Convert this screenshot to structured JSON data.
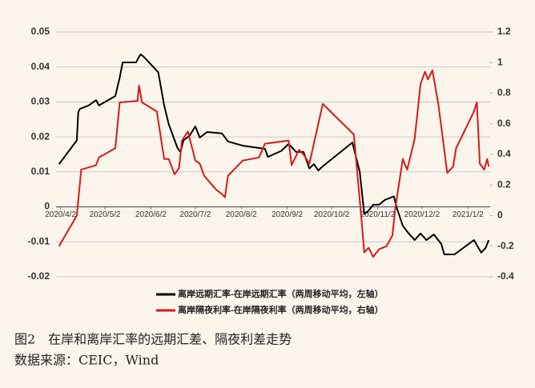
{
  "chart_data": {
    "type": "line",
    "xlim": [
      "2020/3/30",
      "2021/1/17"
    ],
    "xticks": [
      "2020/4/2",
      "2020/5/2",
      "2020/6/2",
      "2020/7/2",
      "2020/8/2",
      "2020/9/2",
      "2020/10/2",
      "2020/11/2",
      "2020/12/2",
      "2021/1/2"
    ],
    "ylim": [
      -0.02,
      0.05
    ],
    "yticks": [
      0.05,
      0.04,
      0.03,
      0.02,
      0.01,
      0,
      -0.01,
      -0.02
    ],
    "y2lim": [
      -0.4,
      1.2
    ],
    "y2ticks": [
      1.2,
      1,
      0.8,
      0.6,
      0.4,
      0.2,
      0,
      -0.2,
      -0.4
    ],
    "grid": true,
    "legend": "bottom",
    "series": [
      {
        "name": "离岸远期汇率-在岸远期汇率（两周移动平均，左轴）",
        "color": "#000000",
        "x": [
          "2020/4/1",
          "2020/4/13",
          "2020/4/14",
          "2020/4/15",
          "2020/4/21",
          "2020/4/26",
          "2020/4/28",
          "2020/5/9",
          "2020/5/12",
          "2020/5/14",
          "2020/5/23",
          "2020/5/26",
          "2020/5/28",
          "2020/6/7",
          "2020/6/11",
          "2020/6/14",
          "2020/6/20",
          "2020/6/22",
          "2020/6/24",
          "2020/6/28",
          "2020/7/2",
          "2020/7/5",
          "2020/7/10",
          "2020/7/20",
          "2020/7/24",
          "2020/8/3",
          "2020/8/18",
          "2020/8/20",
          "2020/8/29",
          "2020/9/3",
          "2020/9/8",
          "2020/9/13",
          "2020/9/17",
          "2020/9/20",
          "2020/9/23",
          "2020/9/26",
          "2020/10/16",
          "2020/10/21",
          "2020/10/24",
          "2020/10/26",
          "2020/10/29",
          "2020/10/30",
          "2020/11/3",
          "2020/11/7",
          "2020/11/13",
          "2020/11/15",
          "2020/11/19",
          "2020/11/23",
          "2020/11/27",
          "2020/12/1",
          "2020/12/5",
          "2020/12/10",
          "2020/12/15",
          "2020/12/17",
          "2020/12/24",
          "2021/1/6",
          "2021/1/11",
          "2021/1/14",
          "2021/1/16"
        ],
        "values": [
          0.0122,
          0.019,
          0.027,
          0.028,
          0.029,
          0.0305,
          0.029,
          0.0317,
          0.037,
          0.0413,
          0.0413,
          0.0436,
          0.043,
          0.0385,
          0.029,
          0.0237,
          0.0168,
          0.0157,
          0.019,
          0.0203,
          0.023,
          0.0198,
          0.0214,
          0.021,
          0.0187,
          0.0175,
          0.0166,
          0.0143,
          0.016,
          0.018,
          0.0157,
          0.0157,
          0.011,
          0.0122,
          0.0104,
          0.0116,
          0.0184,
          0.01,
          -0.002,
          -0.0015,
          0,
          0.0006,
          0.0006,
          0.002,
          0.003,
          -0.0003,
          -0.0054,
          -0.0076,
          -0.0095,
          -0.0076,
          -0.0095,
          -0.0079,
          -0.0106,
          -0.0136,
          -0.0136,
          -0.0095,
          -0.0131,
          -0.0117,
          -0.0095
        ]
      },
      {
        "name": "离岸隔夜利率-在岸隔夜利率（两周移动平均，右轴）",
        "color": "#d7191c",
        "axis": "y2",
        "x": [
          "2020/4/1",
          "2020/4/13",
          "2020/4/16",
          "2020/4/26",
          "2020/4/28",
          "2020/5/9",
          "2020/5/12",
          "2020/5/24",
          "2020/5/25",
          "2020/5/27",
          "2020/6/6",
          "2020/6/11",
          "2020/6/14",
          "2020/6/18",
          "2020/6/21",
          "2020/6/23",
          "2020/6/27",
          "2020/7/2",
          "2020/7/5",
          "2020/7/8",
          "2020/7/16",
          "2020/7/20",
          "2020/7/22",
          "2020/7/24",
          "2020/8/3",
          "2020/8/14",
          "2020/8/18",
          "2020/9/3",
          "2020/9/5",
          "2020/9/10",
          "2020/9/13",
          "2020/9/17",
          "2020/9/26",
          "2020/10/17",
          "2020/10/22",
          "2020/10/24",
          "2020/10/27",
          "2020/10/30",
          "2020/11/3",
          "2020/11/8",
          "2020/11/12",
          "2020/11/14",
          "2020/11/19",
          "2020/11/22",
          "2020/11/27",
          "2020/12/1",
          "2020/12/4",
          "2020/12/6",
          "2020/12/9",
          "2020/12/13",
          "2020/12/19",
          "2020/12/23",
          "2020/12/25",
          "2021/1/6",
          "2021/1/8",
          "2021/1/10",
          "2021/1/13",
          "2021/1/15",
          "2021/1/16"
        ],
        "values": [
          -0.2,
          0,
          0.3,
          0.33,
          0.38,
          0.44,
          0.74,
          0.75,
          0.85,
          0.74,
          0.68,
          0.37,
          0.37,
          0.27,
          0.31,
          0.49,
          0.55,
          0.36,
          0.34,
          0.26,
          0.17,
          0.14,
          0.12,
          0.26,
          0.36,
          0.38,
          0.47,
          0.49,
          0.33,
          0.43,
          0.4,
          0.34,
          0.73,
          0.53,
          -0.01,
          -0.24,
          -0.21,
          -0.27,
          -0.22,
          -0.2,
          -0.13,
          0.05,
          0.37,
          0.3,
          0.5,
          0.86,
          0.94,
          0.89,
          0.95,
          0.73,
          0.28,
          0.32,
          0.44,
          0.68,
          0.74,
          0.34,
          0.3,
          0.37,
          0.32
        ]
      }
    ]
  },
  "figure_caption": "图2　在岸和离岸汇率的远期汇差、隔夜利差走势",
  "source": "数据来源：CEIC，Wind"
}
